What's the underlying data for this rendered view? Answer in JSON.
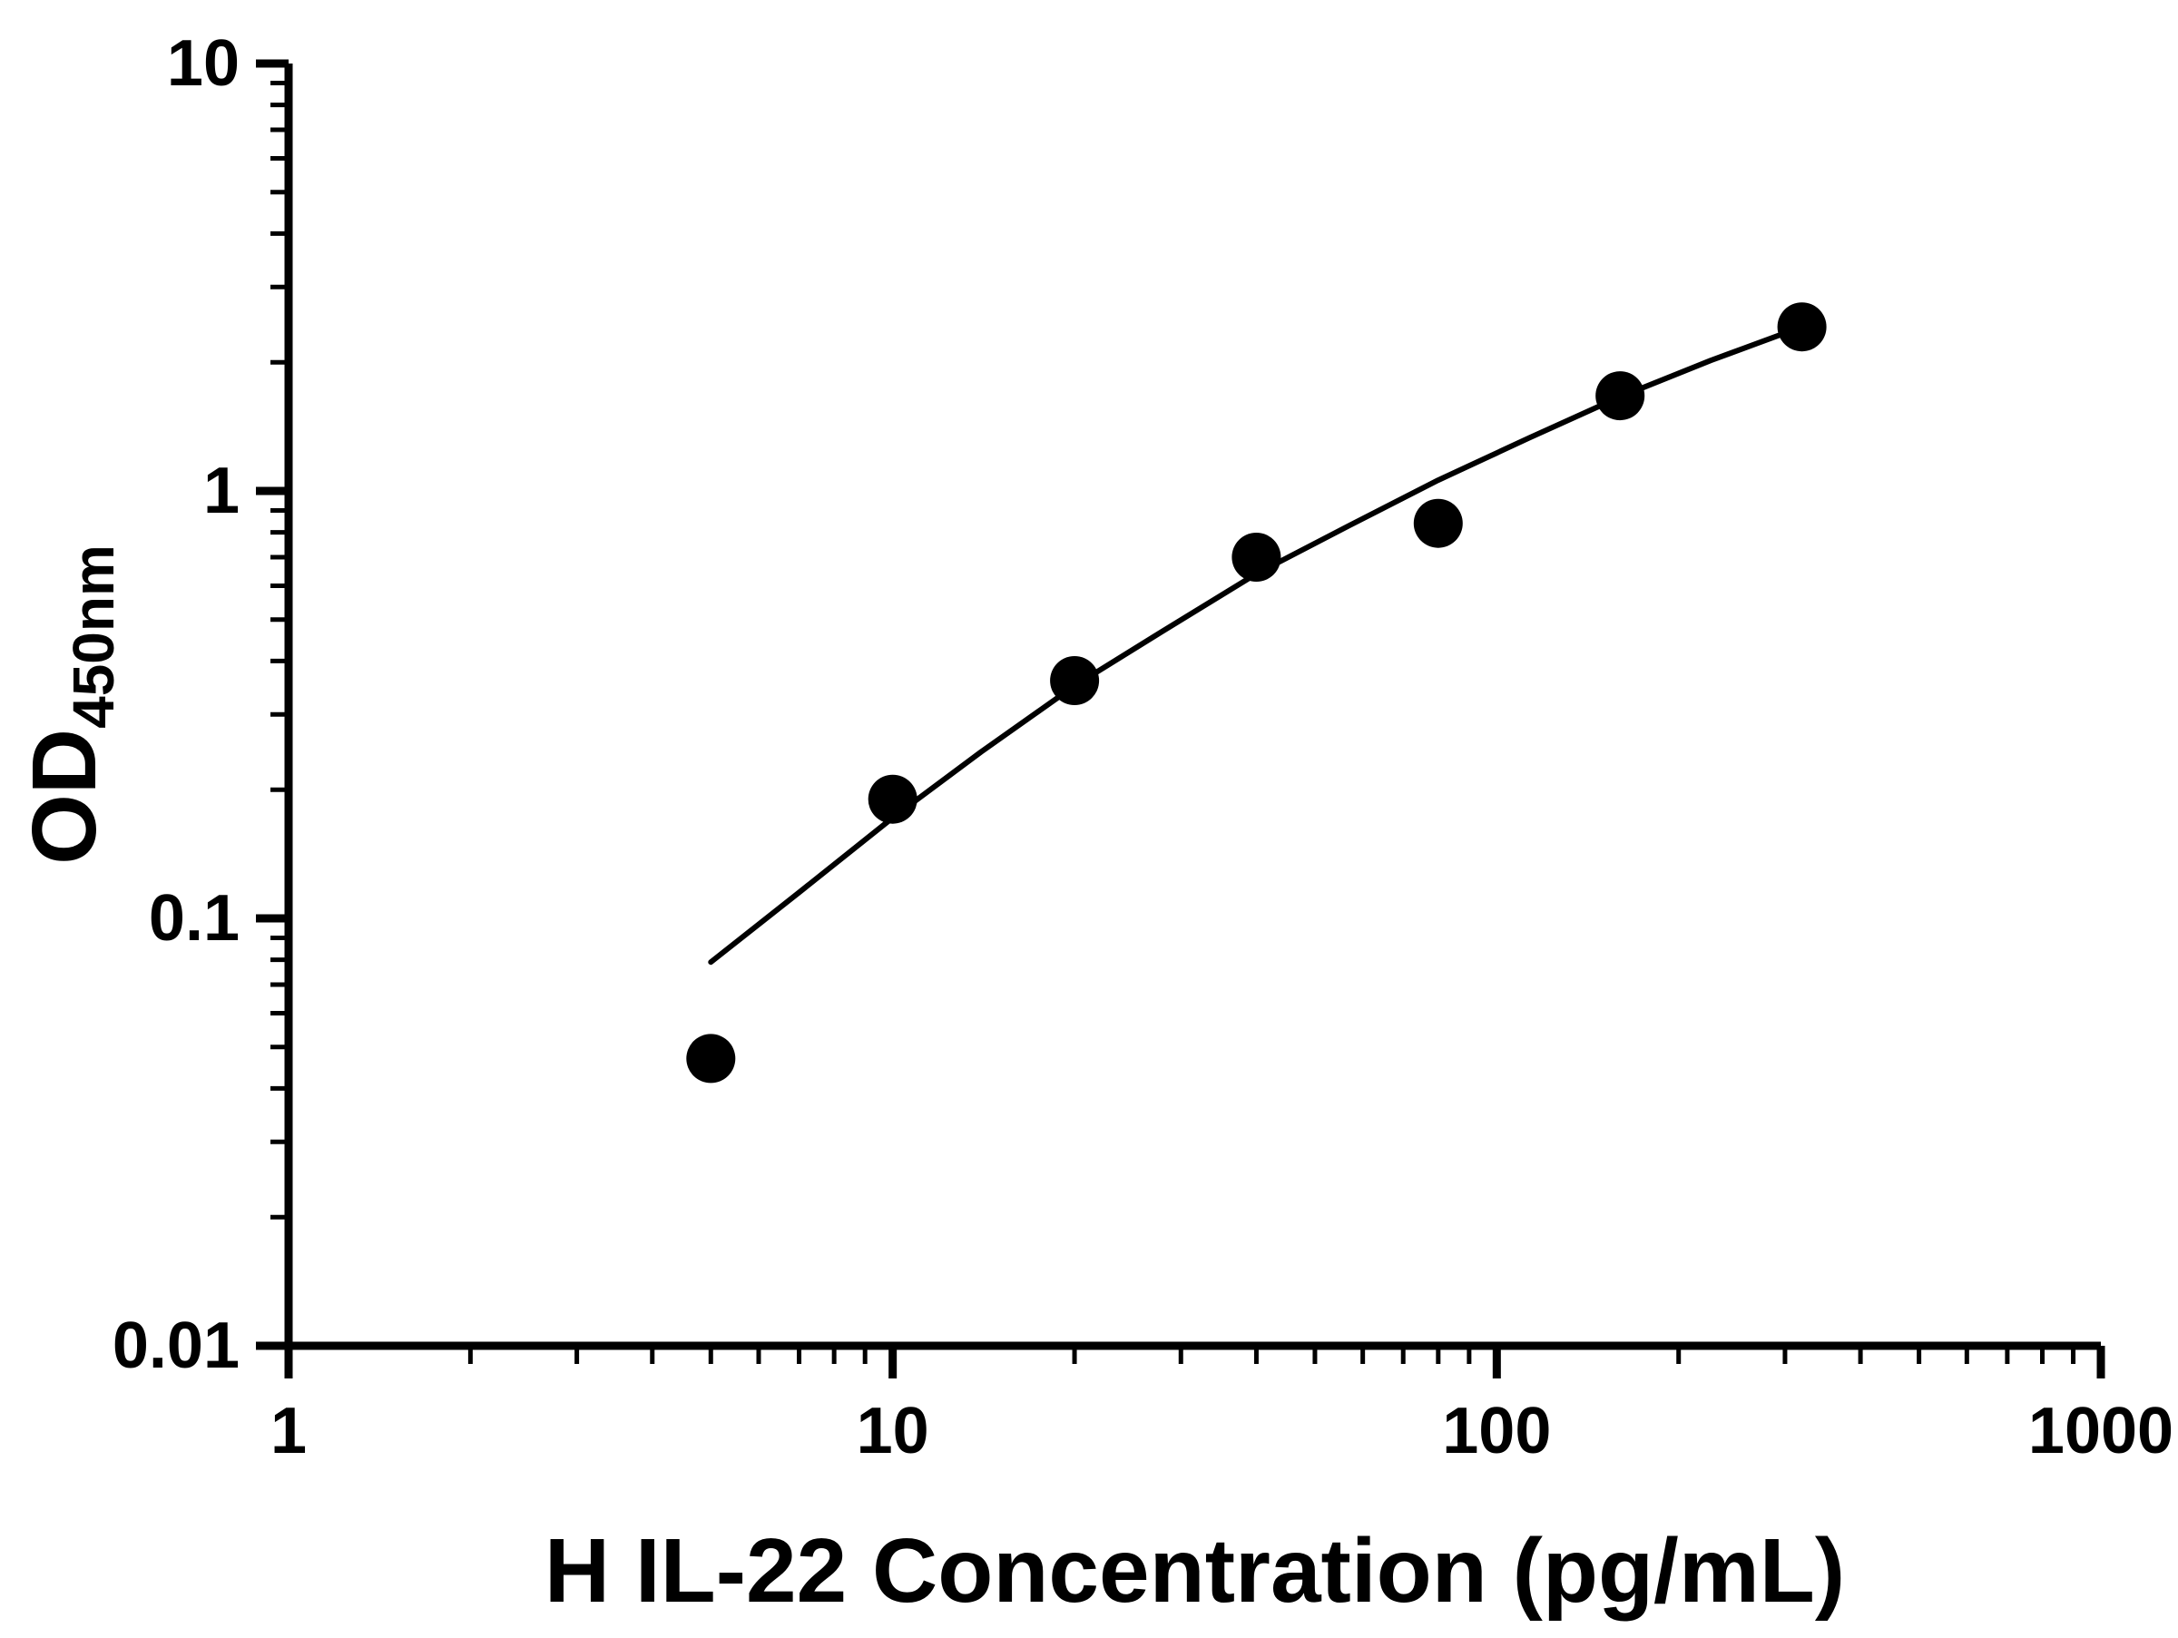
{
  "chart_data": {
    "type": "scatter",
    "title": "",
    "xlabel": "H IL-22 Concentration (pg/mL)",
    "ylabel_main": "OD",
    "ylabel_sub": "450nm",
    "x_scale": "log",
    "y_scale": "log",
    "xlim": [
      1,
      1000
    ],
    "ylim": [
      0.01,
      10
    ],
    "x_ticks": [
      {
        "v": 1,
        "label": "1"
      },
      {
        "v": 10,
        "label": "10"
      },
      {
        "v": 100,
        "label": "100"
      },
      {
        "v": 1000,
        "label": "1000"
      }
    ],
    "y_ticks": [
      {
        "v": 0.01,
        "label": "0.01"
      },
      {
        "v": 0.1,
        "label": "0.1"
      },
      {
        "v": 1,
        "label": "1"
      },
      {
        "v": 10,
        "label": "10"
      }
    ],
    "grid": false,
    "legend": "none",
    "marker_color": "#000000",
    "line_color": "#000000",
    "points": [
      {
        "x": 5,
        "y": 0.047
      },
      {
        "x": 10,
        "y": 0.19
      },
      {
        "x": 20,
        "y": 0.36
      },
      {
        "x": 40,
        "y": 0.7
      },
      {
        "x": 80,
        "y": 0.84
      },
      {
        "x": 160,
        "y": 1.67
      },
      {
        "x": 320,
        "y": 2.42
      }
    ],
    "fit_curve": [
      [
        5,
        0.079
      ],
      [
        7,
        0.115
      ],
      [
        10,
        0.172
      ],
      [
        14,
        0.245
      ],
      [
        20,
        0.35
      ],
      [
        28,
        0.47
      ],
      [
        40,
        0.64
      ],
      [
        57,
        0.83
      ],
      [
        80,
        1.06
      ],
      [
        113,
        1.33
      ],
      [
        160,
        1.66
      ],
      [
        226,
        2.02
      ],
      [
        320,
        2.42
      ]
    ]
  }
}
